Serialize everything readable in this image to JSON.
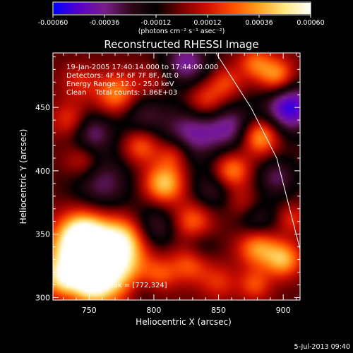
{
  "chart_data": {
    "type": "heatmap",
    "title": "Reconstructed RHESSI Image",
    "xlabel": "Heliocentric X (arcsec)",
    "ylabel": "Heliocentric Y (arcsec)",
    "xlim": [
      722,
      913
    ],
    "ylim": [
      298,
      493
    ],
    "xticks": [
      750,
      800,
      850,
      900
    ],
    "yticks": [
      300,
      350,
      400,
      450
    ],
    "colorbar": {
      "label": "(photons cm⁻² s⁻¹ asec⁻²)",
      "range": [
        -0.0006,
        0.0006
      ],
      "ticks": [
        "-0.00060",
        "-0.00036",
        "-0.00012",
        "0.00012",
        "0.00036",
        "0.00060"
      ],
      "colormap": [
        "#0000ff",
        "#5a00c8",
        "#7a1e8a",
        "#300818",
        "#000000",
        "#7a0000",
        "#d01000",
        "#ff5000",
        "#ffa020",
        "#ffe880",
        "#ffffff"
      ]
    },
    "info_lines": [
      "19-Jan-2005 17:40:14.000 to 17:44:00.000",
      "Detectors: 4F 5F 6F 7F 8F, Att 0",
      "Energy Range: 12.0 - 25.0 keV",
      "Clean    Total counts: 1.86E+03"
    ],
    "peak_text": "Position of Peak = [772,324]",
    "peak": [
      772,
      324
    ],
    "limb_curve": [
      [
        848,
        493
      ],
      [
        875,
        450
      ],
      [
        895,
        410
      ],
      [
        913,
        338
      ]
    ],
    "blobs": [
      [
        765,
        326,
        0.00068,
        20
      ],
      [
        742,
        334,
        0.00055,
        16
      ],
      [
        745,
        352,
        0.0004,
        13
      ],
      [
        778,
        348,
        0.0003,
        12
      ],
      [
        728,
        315,
        0.00035,
        10
      ],
      [
        808,
        390,
        0.00048,
        11
      ],
      [
        790,
        420,
        0.00032,
        10
      ],
      [
        815,
        413,
        0.00025,
        9
      ],
      [
        772,
        460,
        0.0004,
        12
      ],
      [
        742,
        470,
        0.00018,
        10
      ],
      [
        735,
        440,
        0.00025,
        10
      ],
      [
        745,
        408,
        0.00022,
        10
      ],
      [
        840,
        455,
        0.0003,
        11
      ],
      [
        856,
        470,
        0.00022,
        9
      ],
      [
        860,
        400,
        0.00038,
        10
      ],
      [
        882,
        427,
        0.00045,
        10
      ],
      [
        878,
        485,
        0.00028,
        9
      ],
      [
        895,
        475,
        0.0004,
        10
      ],
      [
        830,
        360,
        0.00032,
        11
      ],
      [
        828,
        327,
        0.0003,
        11
      ],
      [
        850,
        312,
        0.0002,
        10
      ],
      [
        880,
        340,
        0.0004,
        11
      ],
      [
        900,
        330,
        0.00042,
        10
      ],
      [
        878,
        310,
        0.00025,
        9
      ],
      [
        907,
        362,
        0.0002,
        8
      ],
      [
        805,
        318,
        0.0002,
        9
      ],
      [
        752,
        310,
        0.0003,
        10
      ],
      [
        800,
        470,
        0.00015,
        10
      ],
      [
        868,
        375,
        0.00015,
        9
      ],
      [
        760,
        390,
        -0.00028,
        16
      ],
      [
        790,
        445,
        -0.00025,
        14
      ],
      [
        830,
        430,
        -0.00035,
        16
      ],
      [
        905,
        450,
        -0.0005,
        14
      ],
      [
        860,
        435,
        -0.0003,
        13
      ],
      [
        845,
        385,
        -0.00022,
        12
      ],
      [
        800,
        355,
        -0.00028,
        13
      ],
      [
        880,
        360,
        -0.00022,
        11
      ],
      [
        752,
        430,
        -0.0003,
        12
      ],
      [
        825,
        485,
        -0.00035,
        13
      ],
      [
        895,
        395,
        -0.00026,
        11
      ],
      [
        835,
        340,
        -0.00018,
        10
      ],
      [
        790,
        305,
        -0.00015,
        10
      ]
    ]
  },
  "timestamp": "5-Jul-2013 09:40"
}
